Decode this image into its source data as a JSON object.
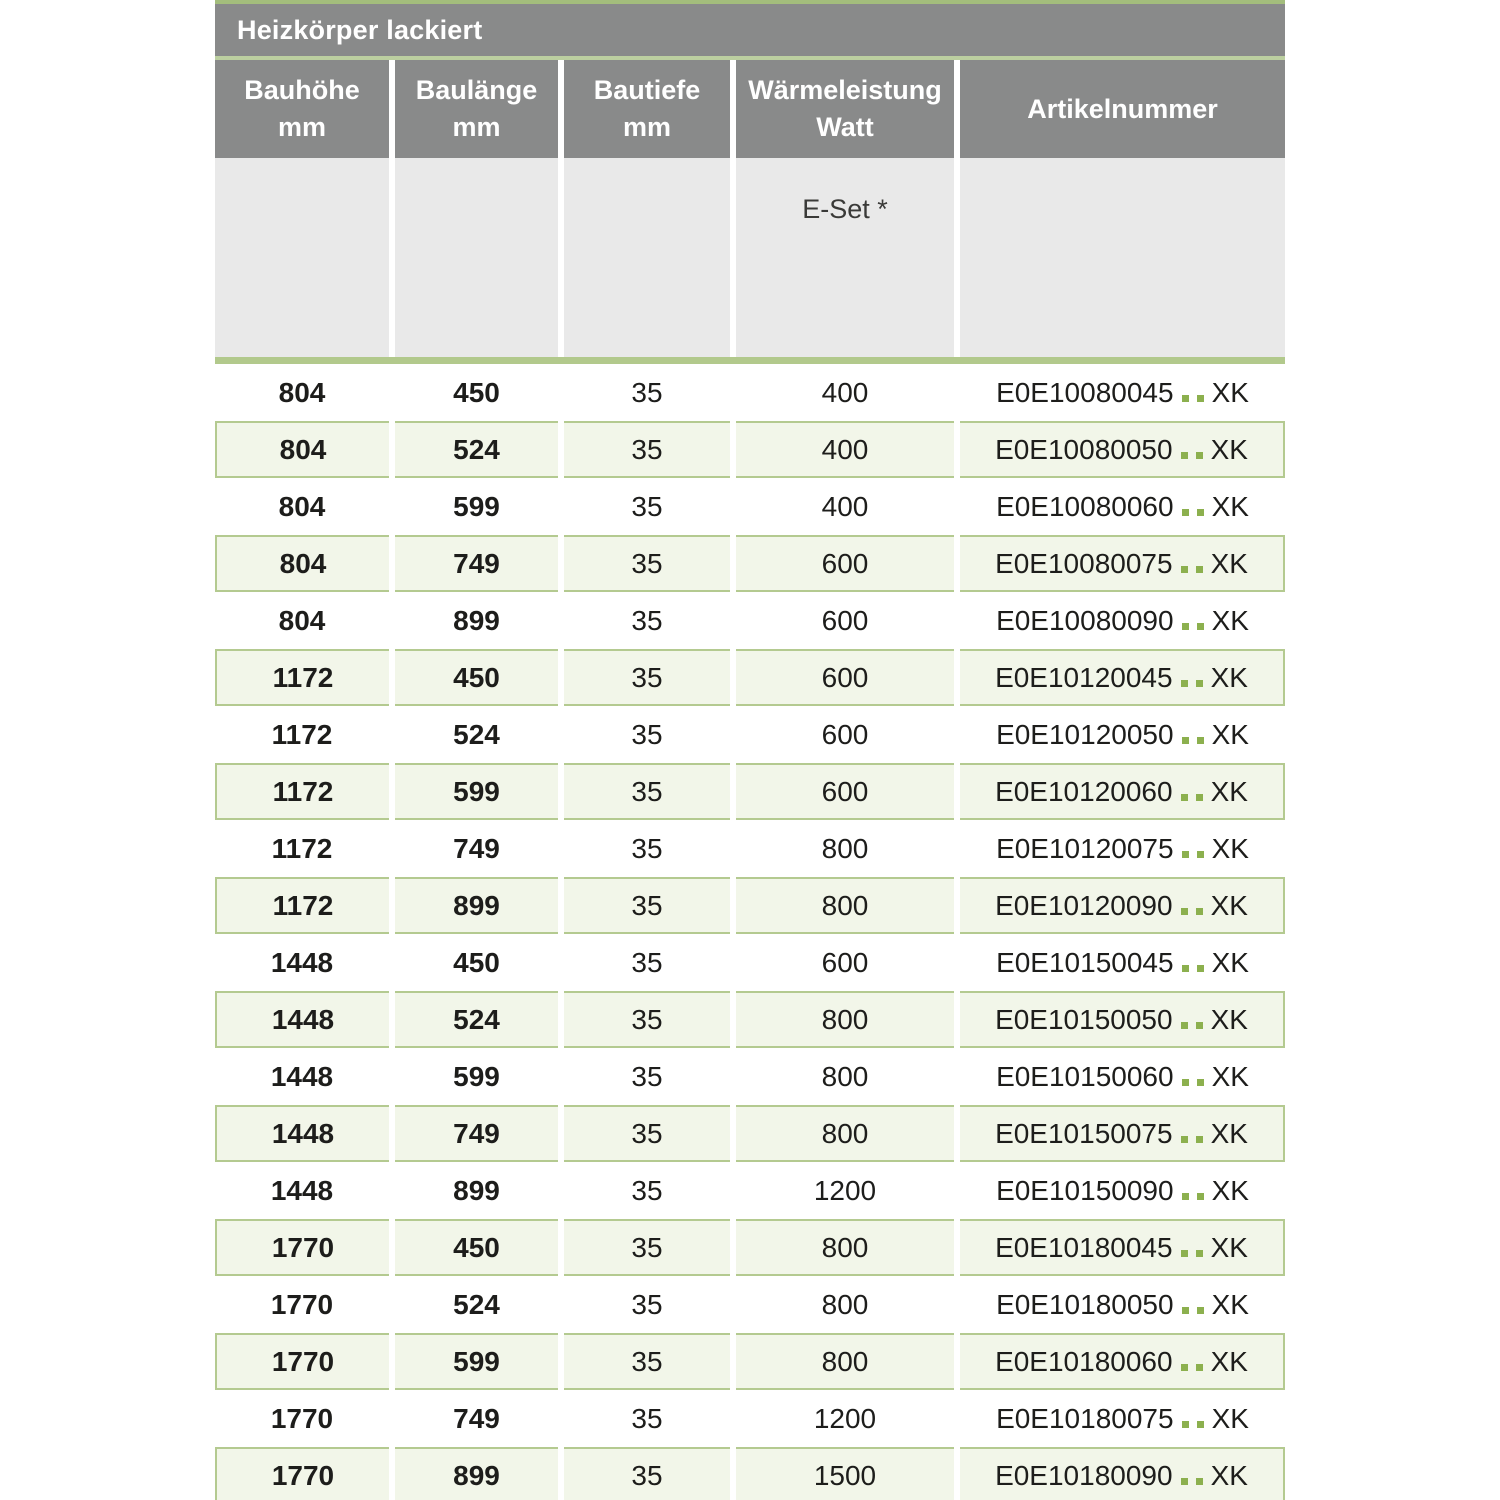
{
  "table": {
    "title": "Heizkörper lackiert",
    "columns": [
      {
        "label": "Bauhöhe",
        "unit": "mm"
      },
      {
        "label": "Baulänge",
        "unit": "mm"
      },
      {
        "label": "Bautiefe",
        "unit": "mm"
      },
      {
        "label": "Wärmeleistung",
        "unit": "Watt"
      },
      {
        "label": "Artikelnummer",
        "unit": ""
      }
    ],
    "subheader_note": "E-Set *",
    "rows": [
      {
        "bauhoehe_mm": "804",
        "baulaenge_mm": "450",
        "bautiefe_mm": "35",
        "waermeleistung_watt": "400",
        "artikel_base": "E0E10080045",
        "artikel_sep": "..",
        "artikel_suffix": "XK"
      },
      {
        "bauhoehe_mm": "804",
        "baulaenge_mm": "524",
        "bautiefe_mm": "35",
        "waermeleistung_watt": "400",
        "artikel_base": "E0E10080050",
        "artikel_sep": "..",
        "artikel_suffix": "XK"
      },
      {
        "bauhoehe_mm": "804",
        "baulaenge_mm": "599",
        "bautiefe_mm": "35",
        "waermeleistung_watt": "400",
        "artikel_base": "E0E10080060",
        "artikel_sep": "..",
        "artikel_suffix": "XK"
      },
      {
        "bauhoehe_mm": "804",
        "baulaenge_mm": "749",
        "bautiefe_mm": "35",
        "waermeleistung_watt": "600",
        "artikel_base": "E0E10080075",
        "artikel_sep": "..",
        "artikel_suffix": "XK"
      },
      {
        "bauhoehe_mm": "804",
        "baulaenge_mm": "899",
        "bautiefe_mm": "35",
        "waermeleistung_watt": "600",
        "artikel_base": "E0E10080090",
        "artikel_sep": "..",
        "artikel_suffix": "XK"
      },
      {
        "bauhoehe_mm": "1172",
        "baulaenge_mm": "450",
        "bautiefe_mm": "35",
        "waermeleistung_watt": "600",
        "artikel_base": "E0E10120045",
        "artikel_sep": "..",
        "artikel_suffix": "XK"
      },
      {
        "bauhoehe_mm": "1172",
        "baulaenge_mm": "524",
        "bautiefe_mm": "35",
        "waermeleistung_watt": "600",
        "artikel_base": "E0E10120050",
        "artikel_sep": "..",
        "artikel_suffix": "XK"
      },
      {
        "bauhoehe_mm": "1172",
        "baulaenge_mm": "599",
        "bautiefe_mm": "35",
        "waermeleistung_watt": "600",
        "artikel_base": "E0E10120060",
        "artikel_sep": "..",
        "artikel_suffix": "XK"
      },
      {
        "bauhoehe_mm": "1172",
        "baulaenge_mm": "749",
        "bautiefe_mm": "35",
        "waermeleistung_watt": "800",
        "artikel_base": "E0E10120075",
        "artikel_sep": "..",
        "artikel_suffix": "XK"
      },
      {
        "bauhoehe_mm": "1172",
        "baulaenge_mm": "899",
        "bautiefe_mm": "35",
        "waermeleistung_watt": "800",
        "artikel_base": "E0E10120090",
        "artikel_sep": "..",
        "artikel_suffix": "XK"
      },
      {
        "bauhoehe_mm": "1448",
        "baulaenge_mm": "450",
        "bautiefe_mm": "35",
        "waermeleistung_watt": "600",
        "artikel_base": "E0E10150045",
        "artikel_sep": "..",
        "artikel_suffix": "XK"
      },
      {
        "bauhoehe_mm": "1448",
        "baulaenge_mm": "524",
        "bautiefe_mm": "35",
        "waermeleistung_watt": "800",
        "artikel_base": "E0E10150050",
        "artikel_sep": "..",
        "artikel_suffix": "XK"
      },
      {
        "bauhoehe_mm": "1448",
        "baulaenge_mm": "599",
        "bautiefe_mm": "35",
        "waermeleistung_watt": "800",
        "artikel_base": "E0E10150060",
        "artikel_sep": "..",
        "artikel_suffix": "XK"
      },
      {
        "bauhoehe_mm": "1448",
        "baulaenge_mm": "749",
        "bautiefe_mm": "35",
        "waermeleistung_watt": "800",
        "artikel_base": "E0E10150075",
        "artikel_sep": "..",
        "artikel_suffix": "XK"
      },
      {
        "bauhoehe_mm": "1448",
        "baulaenge_mm": "899",
        "bautiefe_mm": "35",
        "waermeleistung_watt": "1200",
        "artikel_base": "E0E10150090",
        "artikel_sep": "..",
        "artikel_suffix": "XK"
      },
      {
        "bauhoehe_mm": "1770",
        "baulaenge_mm": "450",
        "bautiefe_mm": "35",
        "waermeleistung_watt": "800",
        "artikel_base": "E0E10180045",
        "artikel_sep": "..",
        "artikel_suffix": "XK"
      },
      {
        "bauhoehe_mm": "1770",
        "baulaenge_mm": "524",
        "bautiefe_mm": "35",
        "waermeleistung_watt": "800",
        "artikel_base": "E0E10180050",
        "artikel_sep": "..",
        "artikel_suffix": "XK"
      },
      {
        "bauhoehe_mm": "1770",
        "baulaenge_mm": "599",
        "bautiefe_mm": "35",
        "waermeleistung_watt": "800",
        "artikel_base": "E0E10180060",
        "artikel_sep": "..",
        "artikel_suffix": "XK"
      },
      {
        "bauhoehe_mm": "1770",
        "baulaenge_mm": "749",
        "bautiefe_mm": "35",
        "waermeleistung_watt": "1200",
        "artikel_base": "E0E10180075",
        "artikel_sep": "..",
        "artikel_suffix": "XK"
      },
      {
        "bauhoehe_mm": "1770",
        "baulaenge_mm": "899",
        "bautiefe_mm": "35",
        "waermeleistung_watt": "1500",
        "artikel_base": "E0E10180090",
        "artikel_sep": "..",
        "artikel_suffix": "XK"
      }
    ],
    "colors": {
      "header_gray": "#898a8a",
      "header_text": "#ffffff",
      "subheader_gray": "#e9e9e9",
      "green_line_top": "#a3bd7c",
      "green_line_mid": "#bccfa0",
      "green_line_thick": "#b2c98c",
      "green_row_fill": "#f2f6e9",
      "green_row_border": "#b4ca90",
      "green_dot": "#8cb04e",
      "text_dark": "#1d1d1b"
    }
  }
}
